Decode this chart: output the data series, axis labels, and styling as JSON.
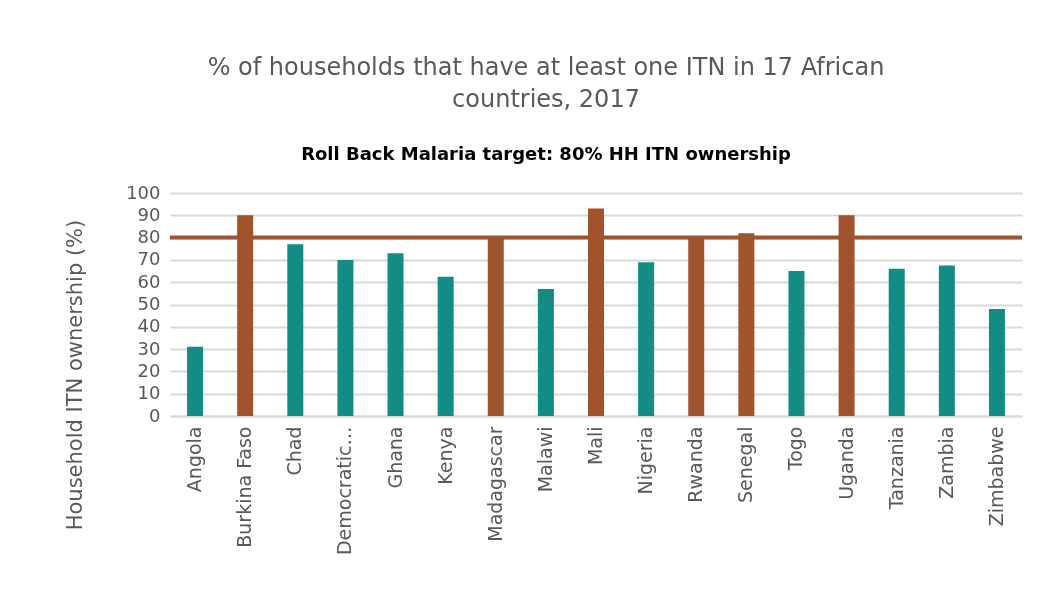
{
  "chart_data": {
    "type": "bar",
    "title": "% of households that have at least one ITN in 17 African countries, 2017",
    "subtitle": "Roll Back Malaria target: 80% HH ITN ownership",
    "ylabel": "Household ITN ownership (%)",
    "categories": [
      "Angola",
      "Burkina Faso",
      "Chad",
      "Democratic…",
      "Ghana",
      "Kenya",
      "Madagascar",
      "Malawi",
      "Mali",
      "Nigeria",
      "Rwanda",
      "Senegal",
      "Togo",
      "Uganda",
      "Tanzania",
      "Zambia",
      "Zimbabwe"
    ],
    "values": [
      31,
      90,
      77,
      70,
      73,
      62.5,
      80,
      57,
      93,
      69,
      80.5,
      82,
      65,
      90,
      66,
      67.5,
      48
    ],
    "colors": [
      "#138d84",
      "#a0532d",
      "#138d84",
      "#138d84",
      "#138d84",
      "#138d84",
      "#a0532d",
      "#138d84",
      "#a0532d",
      "#138d84",
      "#a0532d",
      "#a0532d",
      "#138d84",
      "#a0532d",
      "#138d84",
      "#138d84",
      "#138d84"
    ],
    "ylim": [
      0,
      100
    ],
    "yticks": [
      0,
      10,
      20,
      30,
      40,
      50,
      60,
      70,
      80,
      90,
      100
    ],
    "grid": true,
    "ref_lines": [
      {
        "axis": "y",
        "value": 80,
        "color": "#a0532d"
      }
    ]
  }
}
